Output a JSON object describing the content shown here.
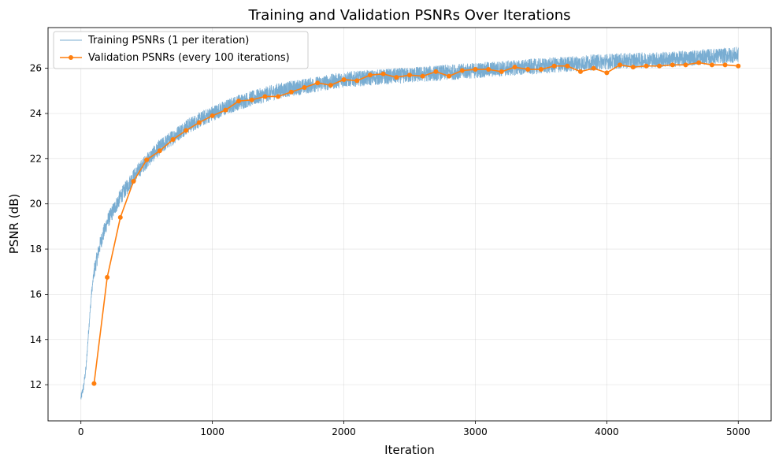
{
  "chart_data": {
    "type": "line",
    "title": "Training and Validation PSNRs Over Iterations",
    "xlabel": "Iteration",
    "ylabel": "PSNR (dB)",
    "xlim": [
      -250,
      5250
    ],
    "ylim": [
      10.4,
      27.8
    ],
    "xticks": [
      0,
      1000,
      2000,
      3000,
      4000,
      5000
    ],
    "yticks": [
      12,
      14,
      16,
      18,
      20,
      22,
      24,
      26
    ],
    "grid": true,
    "legend_position": "upper-left",
    "series": [
      {
        "name": "Training PSNRs (1 per iteration)",
        "color": "#1f77b4",
        "kind": "noisy-line",
        "x_range": [
          0,
          5000
        ],
        "curve_x": [
          0,
          20,
          40,
          60,
          80,
          100,
          150,
          200,
          300,
          400,
          500,
          600,
          800,
          1000,
          1200,
          1500,
          2000,
          2500,
          3000,
          3500,
          4000,
          4500,
          5000
        ],
        "curve_y": [
          11.4,
          11.9,
          12.8,
          14.5,
          16.0,
          17.0,
          18.3,
          19.2,
          20.3,
          21.2,
          21.9,
          22.5,
          23.4,
          24.0,
          24.5,
          25.0,
          25.5,
          25.7,
          25.9,
          26.1,
          26.3,
          26.4,
          26.6
        ],
        "noise_amplitude": 0.35
      },
      {
        "name": "Validation PSNRs (every 100 iterations)",
        "color": "#ff7f0e",
        "kind": "line-markers",
        "x": [
          100,
          200,
          300,
          400,
          500,
          600,
          700,
          800,
          900,
          1000,
          1100,
          1200,
          1300,
          1400,
          1500,
          1600,
          1700,
          1800,
          1900,
          2000,
          2100,
          2200,
          2300,
          2400,
          2500,
          2600,
          2700,
          2800,
          2900,
          3000,
          3100,
          3200,
          3300,
          3400,
          3500,
          3600,
          3700,
          3800,
          3900,
          4000,
          4100,
          4200,
          4300,
          4400,
          4500,
          4600,
          4700,
          4800,
          4900,
          5000
        ],
        "y": [
          12.05,
          16.75,
          19.4,
          21.0,
          21.95,
          22.35,
          22.85,
          23.25,
          23.6,
          23.9,
          24.15,
          24.55,
          24.6,
          24.75,
          24.75,
          24.95,
          25.15,
          25.35,
          25.25,
          25.5,
          25.45,
          25.7,
          25.75,
          25.6,
          25.7,
          25.65,
          25.85,
          25.65,
          25.9,
          25.95,
          25.95,
          25.85,
          26.05,
          25.95,
          25.95,
          26.1,
          26.1,
          25.85,
          26.0,
          25.8,
          26.15,
          26.05,
          26.1,
          26.1,
          26.15,
          26.15,
          26.25,
          26.15,
          26.15,
          26.1
        ]
      }
    ]
  }
}
